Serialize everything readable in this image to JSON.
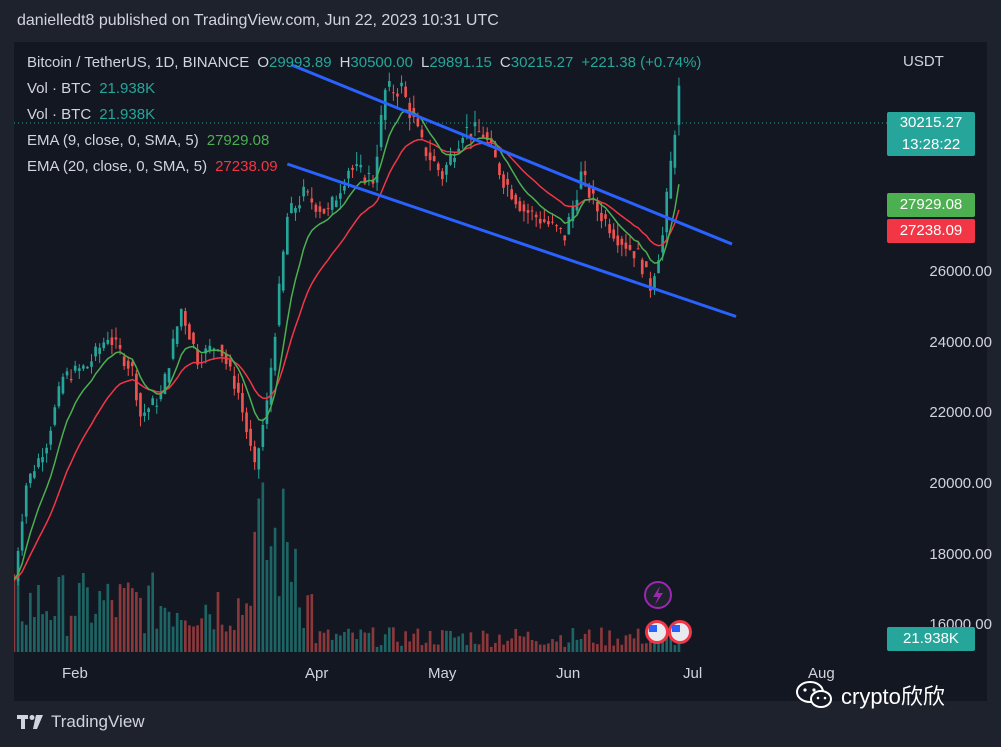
{
  "header": {
    "published": "danielledt8 published on TradingView.com, Jun 22, 2023 10:31 UTC"
  },
  "legend": {
    "symbol": "Bitcoin / TetherUS, 1D, BINANCE",
    "o_label": "O",
    "o_value": "29993.89",
    "h_label": "H",
    "h_value": "30500.00",
    "l_label": "L",
    "l_value": "29891.15",
    "c_label": "C",
    "c_value": "30215.27",
    "change": "+221.38 (+0.74%)",
    "vol1_label": "Vol · BTC",
    "vol1_value": "21.938K",
    "vol2_label": "Vol · BTC",
    "vol2_value": "21.938K",
    "ema9_label": "EMA (9, close, 0, SMA, 5)",
    "ema9_value": "27929.08",
    "ema20_label": "EMA (20, close, 0, SMA, 5)",
    "ema20_value": "27238.09"
  },
  "axis": {
    "currency": "USDT",
    "price_ticks": [
      "26000.00",
      "24000.00",
      "22000.00",
      "20000.00",
      "18000.00",
      "16000.00"
    ],
    "month_ticks": [
      "Feb",
      "Apr",
      "May",
      "Jun",
      "Jul",
      "Aug"
    ]
  },
  "tags": {
    "last_price": "30215.27",
    "countdown": "13:28:22",
    "ema9": "27929.08",
    "ema20": "27238.09",
    "volume": "21.938K"
  },
  "footer": {
    "brand": "TradingView",
    "watermark": "crypto欣欣"
  },
  "colors": {
    "up": "#26a69a",
    "down": "#ef5350",
    "ema9": "#4caf50",
    "ema20": "#f23645",
    "trendline": "#2962ff",
    "background": "#131722"
  },
  "chart_data": {
    "type": "candlestick",
    "title": "Bitcoin / TetherUS, 1D, BINANCE",
    "ylim": [
      15500,
      31500
    ],
    "x_range": [
      "2023-01-10",
      "2023-08-12"
    ],
    "scale": "linear",
    "grid": false,
    "close_series": [
      {
        "date": "2023-01-10",
        "close": 17400
      },
      {
        "date": "2023-01-13",
        "close": 19900
      },
      {
        "date": "2023-01-18",
        "close": 21000
      },
      {
        "date": "2023-01-22",
        "close": 22700
      },
      {
        "date": "2023-01-28",
        "close": 23000
      },
      {
        "date": "2023-02-02",
        "close": 23800
      },
      {
        "date": "2023-02-08",
        "close": 22900
      },
      {
        "date": "2023-02-10",
        "close": 21700
      },
      {
        "date": "2023-02-15",
        "close": 22200
      },
      {
        "date": "2023-02-20",
        "close": 24500
      },
      {
        "date": "2023-02-24",
        "close": 23200
      },
      {
        "date": "2023-03-01",
        "close": 23600
      },
      {
        "date": "2023-03-06",
        "close": 22300
      },
      {
        "date": "2023-03-10",
        "close": 20300
      },
      {
        "date": "2023-03-13",
        "close": 22000
      },
      {
        "date": "2023-03-18",
        "close": 26900
      },
      {
        "date": "2023-03-22",
        "close": 27500
      },
      {
        "date": "2023-03-28",
        "close": 27000
      },
      {
        "date": "2023-04-02",
        "close": 28200
      },
      {
        "date": "2023-04-08",
        "close": 27900
      },
      {
        "date": "2023-04-11",
        "close": 30200
      },
      {
        "date": "2023-04-15",
        "close": 30300
      },
      {
        "date": "2023-04-20",
        "close": 28800
      },
      {
        "date": "2023-04-25",
        "close": 28000
      },
      {
        "date": "2023-04-30",
        "close": 29200
      },
      {
        "date": "2023-05-05",
        "close": 29100
      },
      {
        "date": "2023-05-10",
        "close": 27900
      },
      {
        "date": "2023-05-15",
        "close": 27100
      },
      {
        "date": "2023-05-20",
        "close": 26800
      },
      {
        "date": "2023-05-25",
        "close": 26400
      },
      {
        "date": "2023-05-29",
        "close": 28000
      },
      {
        "date": "2023-06-02",
        "close": 27100
      },
      {
        "date": "2023-06-07",
        "close": 26400
      },
      {
        "date": "2023-06-12",
        "close": 25900
      },
      {
        "date": "2023-06-15",
        "close": 25100
      },
      {
        "date": "2023-06-18",
        "close": 26400
      },
      {
        "date": "2023-06-20",
        "close": 28300
      },
      {
        "date": "2023-06-22",
        "close": 30215
      }
    ],
    "ema9_end": 27929.08,
    "ema20_end": 27238.09,
    "trendlines": [
      {
        "name": "upper",
        "from": {
          "date": "2023-03-19",
          "price": 30900
        },
        "to": {
          "date": "2023-07-05",
          "price": 26200
        }
      },
      {
        "name": "lower",
        "from": {
          "date": "2023-03-18",
          "price": 28300
        },
        "to": {
          "date": "2023-07-06",
          "price": 24300
        }
      }
    ],
    "last_volume": "21.938K"
  }
}
